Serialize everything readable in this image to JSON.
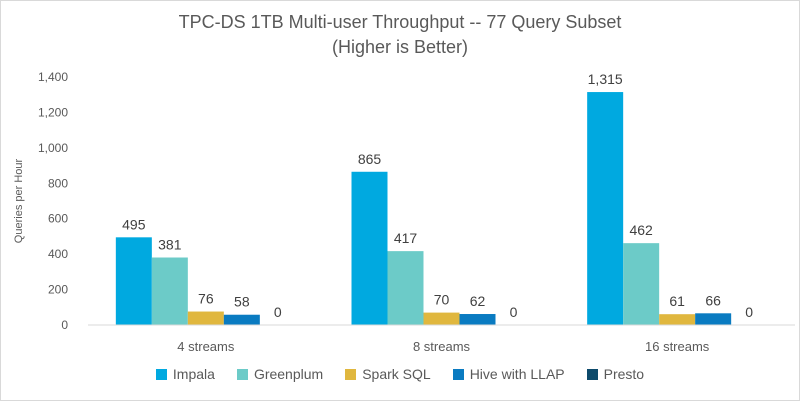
{
  "chart_data": {
    "type": "bar",
    "title": "TPC-DS 1TB Multi-user Throughput -- 77 Query Subset",
    "subtitle": "(Higher is Better)",
    "xlabel": "",
    "ylabel": "Queries per Hour",
    "ylim": [
      0,
      1400
    ],
    "yticks": [
      "0",
      "200",
      "400",
      "600",
      "800",
      "1,000",
      "1,200",
      "1,400"
    ],
    "categories": [
      "4 streams",
      "8 streams",
      "16 streams"
    ],
    "series": [
      {
        "name": "Impala",
        "color": "#00a9e0",
        "values": [
          495,
          865,
          1315
        ],
        "labels": [
          "495",
          "865",
          "1,315"
        ]
      },
      {
        "name": "Greenplum",
        "color": "#6ccbc8",
        "values": [
          381,
          417,
          462
        ],
        "labels": [
          "381",
          "417",
          "462"
        ]
      },
      {
        "name": "Spark SQL",
        "color": "#e0b73e",
        "values": [
          76,
          70,
          61
        ],
        "labels": [
          "76",
          "70",
          "61"
        ]
      },
      {
        "name": "Hive with LLAP",
        "color": "#0a7bc1",
        "values": [
          58,
          62,
          66
        ],
        "labels": [
          "58",
          "62",
          "66"
        ]
      },
      {
        "name": "Presto",
        "color": "#0d4a6b",
        "values": [
          0,
          0,
          0
        ],
        "labels": [
          "0",
          "0",
          "0"
        ]
      }
    ],
    "grid": false,
    "legend": "bottom"
  }
}
